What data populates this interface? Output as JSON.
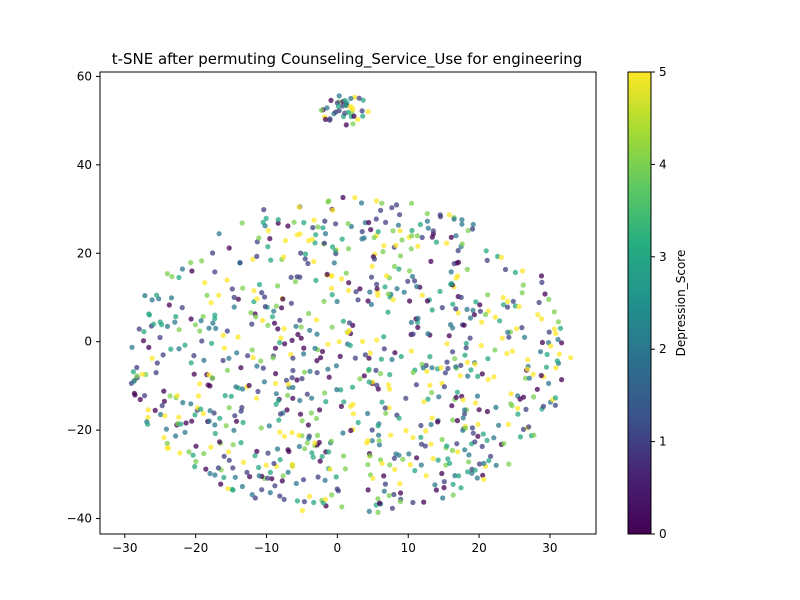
{
  "chart_data": {
    "type": "scatter",
    "title": "t-SNE after permuting Counseling_Service_Use for engineering",
    "xlabel": "",
    "ylabel": "",
    "xlim": [
      -33.5,
      36.5
    ],
    "ylim": [
      -43.5,
      61
    ],
    "xticks": [
      -30,
      -20,
      -10,
      0,
      10,
      20,
      30
    ],
    "yticks": [
      -40,
      -20,
      0,
      20,
      40,
      60
    ],
    "colorbar": {
      "label": "Depression_Score",
      "range": [
        0,
        5
      ],
      "ticks": [
        0,
        1,
        2,
        3,
        4,
        5
      ],
      "colormap": "viridis"
    },
    "marker_alpha": 0.75,
    "grid": false,
    "cluster_top": {
      "x_range": [
        -2.5,
        4.5
      ],
      "y_range": [
        49,
        56
      ],
      "count": 40
    },
    "cluster_main": {
      "x_range": [
        -30,
        33
      ],
      "y_range": [
        -39,
        33
      ],
      "count": 900
    }
  }
}
